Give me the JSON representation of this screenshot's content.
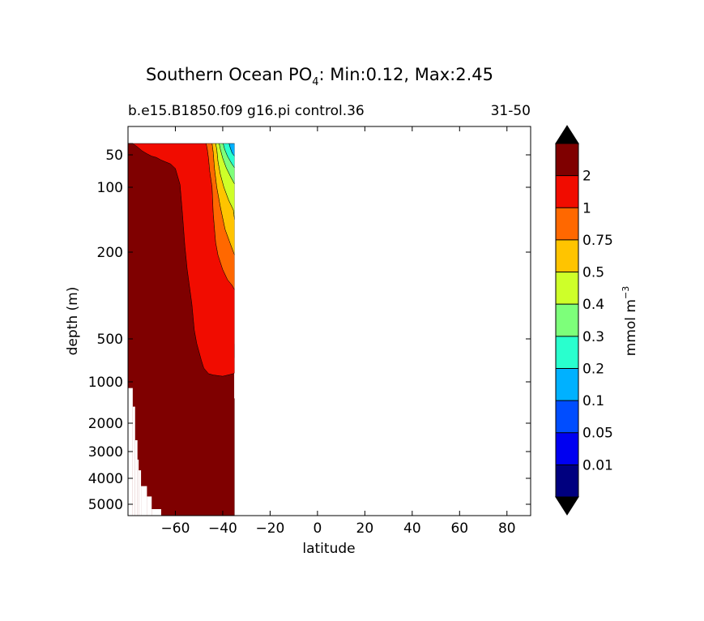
{
  "chart_data": {
    "type": "heatmap",
    "title_main": "Southern Ocean PO",
    "title_sub_script": "4",
    "title_rest": ": Min:0.12, Max:2.45",
    "subtitle_left": "b.e15.B1850.f09 g16.pi control.36",
    "subtitle_right": "31-50",
    "xlabel": "latitude",
    "ylabel": "depth (m)",
    "xlim": [
      -80,
      90
    ],
    "x_ticks": [
      {
        "value": -60,
        "label": "−60"
      },
      {
        "value": -40,
        "label": "−40"
      },
      {
        "value": -20,
        "label": "−20"
      },
      {
        "value": 0,
        "label": "0"
      },
      {
        "value": 20,
        "label": "20"
      },
      {
        "value": 40,
        "label": "40"
      },
      {
        "value": 60,
        "label": "60"
      },
      {
        "value": 80,
        "label": "80"
      }
    ],
    "y_ticks": [
      {
        "value": 50,
        "label": "50"
      },
      {
        "value": 100,
        "label": "100"
      },
      {
        "value": 200,
        "label": "200"
      },
      {
        "value": 500,
        "label": "500"
      },
      {
        "value": 1000,
        "label": "1000"
      },
      {
        "value": 2000,
        "label": "2000"
      },
      {
        "value": 3000,
        "label": "3000"
      },
      {
        "value": 4000,
        "label": "4000"
      },
      {
        "value": 5000,
        "label": "5000"
      }
    ],
    "colorbar": {
      "label_main": "mmol m",
      "label_sup": "−3",
      "levels": [
        "0.01",
        "0.05",
        "0.1",
        "0.2",
        "0.3",
        "0.4",
        "0.5",
        "0.75",
        "1",
        "2"
      ],
      "colors": [
        "#00007f",
        "#0000f1",
        "#004dff",
        "#00b1ff",
        "#29ffce",
        "#7dff7a",
        "#ceff29",
        "#ffc400",
        "#ff6800",
        "#f10c00",
        "#7f0000"
      ],
      "under_color": "#000000",
      "over_color": "#000000"
    },
    "regions": [
      {
        "name": "deep",
        "color": "#7f0000",
        "outline": [
          [
            -80,
            30
          ],
          [
            -78,
            30
          ],
          [
            -76,
            36
          ],
          [
            -74,
            43
          ],
          [
            -72,
            48
          ],
          [
            -70,
            52
          ],
          [
            -68,
            54
          ],
          [
            -66,
            58
          ],
          [
            -64,
            61
          ],
          [
            -62,
            64
          ],
          [
            -60,
            71
          ],
          [
            -58,
            96
          ],
          [
            -57,
            140
          ],
          [
            -56,
            190
          ],
          [
            -55,
            260
          ],
          [
            -54,
            320
          ],
          [
            -53,
            380
          ],
          [
            -52,
            470
          ],
          [
            -51,
            550
          ],
          [
            -50,
            650
          ],
          [
            -49,
            750
          ],
          [
            -48,
            840
          ],
          [
            -46,
            905
          ],
          [
            -44,
            920
          ],
          [
            -40,
            935
          ],
          [
            -37,
            915
          ],
          [
            -35,
            890
          ],
          [
            -35,
            1400
          ],
          [
            -35,
            6000
          ],
          [
            -80,
            6000
          ]
        ]
      },
      {
        "name": "red",
        "color": "#f10c00",
        "outline": [
          [
            -80,
            30
          ],
          [
            -47,
            30
          ],
          [
            -46.5,
            40
          ],
          [
            -46,
            55
          ],
          [
            -45.5,
            75
          ],
          [
            -44.5,
            100
          ],
          [
            -44,
            140
          ],
          [
            -43,
            185
          ],
          [
            -42,
            210
          ],
          [
            -40,
            260
          ],
          [
            -38,
            295
          ],
          [
            -36,
            315
          ],
          [
            -35,
            330
          ],
          [
            -35,
            900
          ],
          [
            -37,
            915
          ],
          [
            -40,
            935
          ],
          [
            -44,
            920
          ],
          [
            -46,
            905
          ],
          [
            -48,
            840
          ],
          [
            -49,
            750
          ],
          [
            -50,
            650
          ],
          [
            -51,
            550
          ],
          [
            -52,
            470
          ],
          [
            -53,
            380
          ],
          [
            -54,
            320
          ],
          [
            -55,
            260
          ],
          [
            -56,
            190
          ],
          [
            -57,
            140
          ],
          [
            -58,
            96
          ],
          [
            -60,
            71
          ],
          [
            -62,
            64
          ],
          [
            -64,
            61
          ],
          [
            -66,
            58
          ],
          [
            -68,
            54
          ],
          [
            -70,
            52
          ],
          [
            -72,
            48
          ],
          [
            -74,
            43
          ],
          [
            -76,
            36
          ],
          [
            -78,
            30
          ]
        ]
      },
      {
        "name": "orange",
        "color": "#ff6800",
        "outline": [
          [
            -47,
            30
          ],
          [
            -44.5,
            30
          ],
          [
            -44,
            45
          ],
          [
            -43.5,
            70
          ],
          [
            -42.5,
            100
          ],
          [
            -41,
            130
          ],
          [
            -39,
            165
          ],
          [
            -36.5,
            190
          ],
          [
            -35,
            210
          ],
          [
            -35,
            330
          ],
          [
            -36,
            315
          ],
          [
            -38,
            295
          ],
          [
            -40,
            260
          ],
          [
            -42,
            210
          ],
          [
            -43,
            185
          ],
          [
            -44,
            140
          ],
          [
            -44.5,
            100
          ],
          [
            -45.5,
            75
          ],
          [
            -46,
            55
          ],
          [
            -46.5,
            40
          ]
        ]
      },
      {
        "name": "yellow",
        "color": "#ffc400",
        "outline": [
          [
            -44.5,
            30
          ],
          [
            -43,
            30
          ],
          [
            -42.5,
            40
          ],
          [
            -42,
            60
          ],
          [
            -41,
            80
          ],
          [
            -39.5,
            100
          ],
          [
            -37.5,
            120
          ],
          [
            -35.5,
            135
          ],
          [
            -35,
            150
          ],
          [
            -35,
            210
          ],
          [
            -36.5,
            190
          ],
          [
            -39,
            165
          ],
          [
            -41,
            130
          ],
          [
            -42.5,
            100
          ],
          [
            -43.5,
            70
          ],
          [
            -44,
            45
          ]
        ]
      },
      {
        "name": "ygreen",
        "color": "#ceff29",
        "outline": [
          [
            -43,
            30
          ],
          [
            -41.5,
            30
          ],
          [
            -41,
            40
          ],
          [
            -40,
            55
          ],
          [
            -38.5,
            70
          ],
          [
            -36.5,
            85
          ],
          [
            -35,
            95
          ],
          [
            -35,
            150
          ],
          [
            -35.5,
            135
          ],
          [
            -37.5,
            120
          ],
          [
            -39.5,
            100
          ],
          [
            -41,
            80
          ],
          [
            -42,
            60
          ],
          [
            -42.5,
            40
          ]
        ]
      },
      {
        "name": "green",
        "color": "#7dff7a",
        "outline": [
          [
            -41.5,
            30
          ],
          [
            -39.8,
            30
          ],
          [
            -39.2,
            40
          ],
          [
            -38,
            52
          ],
          [
            -36.3,
            63
          ],
          [
            -35,
            70
          ],
          [
            -35,
            95
          ],
          [
            -36.5,
            85
          ],
          [
            -38.5,
            70
          ],
          [
            -40,
            55
          ],
          [
            -41,
            40
          ]
        ]
      },
      {
        "name": "cyan",
        "color": "#29ffce",
        "outline": [
          [
            -39.8,
            30
          ],
          [
            -37.3,
            30
          ],
          [
            -36.8,
            38
          ],
          [
            -36,
            47
          ],
          [
            -35,
            52
          ],
          [
            -35,
            70
          ],
          [
            -36.3,
            63
          ],
          [
            -38,
            52
          ],
          [
            -39.2,
            40
          ]
        ]
      },
      {
        "name": "blue",
        "color": "#00b1ff",
        "outline": [
          [
            -37.3,
            30
          ],
          [
            -35,
            30
          ],
          [
            -35,
            52
          ],
          [
            -36,
            47
          ],
          [
            -36.8,
            38
          ]
        ]
      },
      {
        "name": "deep-orange-sliver",
        "color": "#ff6800",
        "outline": [
          [
            -35,
            560
          ],
          [
            -34.6,
            560
          ],
          [
            -34.6,
            720
          ],
          [
            -35,
            720
          ]
        ]
      }
    ],
    "mask": {
      "ocean_north_edge": -35,
      "bottom_steps": [
        {
          "lat": -80,
          "depth": 1150
        },
        {
          "lat": -78,
          "depth": 1600
        },
        {
          "lat": -77,
          "depth": 2600
        },
        {
          "lat": -76,
          "depth": 3300
        },
        {
          "lat": -75.5,
          "depth": 3700
        },
        {
          "lat": -74.5,
          "depth": 4300
        },
        {
          "lat": -72,
          "depth": 4700
        },
        {
          "lat": -70,
          "depth": 5200
        },
        {
          "lat": -66,
          "depth": 5600
        },
        {
          "lat": -64,
          "depth": 6000
        },
        {
          "lat": -56,
          "depth": 5600
        },
        {
          "lat": -54,
          "depth": 6000
        },
        {
          "lat": -35,
          "depth": 6000
        }
      ],
      "north_notch": {
        "lat": -35,
        "from_depth": 900,
        "to_depth": 1400
      }
    }
  }
}
